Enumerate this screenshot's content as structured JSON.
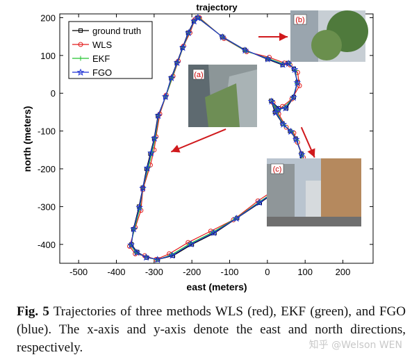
{
  "chart_data": {
    "type": "line",
    "title": "trajectory",
    "xlabel": "east (meters)",
    "ylabel": "north (meters)",
    "xlim": [
      -550,
      280
    ],
    "ylim": [
      -450,
      210
    ],
    "xticks": [
      -500,
      -400,
      -300,
      -200,
      -100,
      0,
      100,
      200
    ],
    "yticks": [
      200,
      100,
      0,
      -100,
      -200,
      -300,
      -400
    ],
    "grid": false,
    "legend_position": "top-left",
    "series": [
      {
        "name": "ground truth",
        "color": "#000000",
        "marker": "square",
        "x": [
          -185,
          -120,
          -60,
          0,
          40,
          55,
          70,
          80,
          70,
          50,
          30,
          10,
          20,
          40,
          60,
          75,
          90,
          80,
          40,
          -20,
          -80,
          -140,
          -200,
          -250,
          -290,
          -320,
          -345,
          -360,
          -355,
          -340,
          -330,
          -320,
          -310,
          -300,
          -290,
          -270,
          -255,
          -240,
          -225,
          -210,
          -195,
          -185
        ],
        "y": [
          200,
          150,
          115,
          90,
          75,
          80,
          65,
          30,
          -10,
          -40,
          -40,
          -20,
          -50,
          -80,
          -100,
          -120,
          -160,
          -210,
          -250,
          -290,
          -330,
          -370,
          -400,
          -430,
          -440,
          -435,
          -420,
          -400,
          -360,
          -300,
          -250,
          -200,
          -160,
          -120,
          -60,
          -10,
          40,
          80,
          120,
          160,
          190,
          200
        ]
      },
      {
        "name": "WLS",
        "color": "#e21b1b",
        "marker": "circle",
        "x": [
          -180,
          -115,
          -55,
          5,
          45,
          60,
          80,
          85,
          65,
          40,
          25,
          15,
          30,
          50,
          70,
          80,
          95,
          85,
          35,
          -25,
          -90,
          -150,
          -210,
          -260,
          -295,
          -325,
          -350,
          -365,
          -350,
          -335,
          -330,
          -310,
          -300,
          -295,
          -285,
          -268,
          -250,
          -236,
          -222,
          -205,
          -192,
          -180
        ],
        "y": [
          200,
          145,
          110,
          95,
          80,
          75,
          55,
          20,
          -15,
          -35,
          -50,
          -25,
          -55,
          -90,
          -105,
          -130,
          -170,
          -215,
          -245,
          -285,
          -335,
          -365,
          -395,
          -425,
          -440,
          -430,
          -425,
          -405,
          -355,
          -310,
          -255,
          -190,
          -150,
          -115,
          -55,
          -5,
          45,
          85,
          125,
          160,
          195,
          200
        ]
      },
      {
        "name": "EKF",
        "color": "#22c32e",
        "marker": "plus",
        "x": [
          -182,
          -118,
          -58,
          2,
          42,
          58,
          75,
          78,
          68,
          45,
          28,
          12,
          25,
          45,
          65,
          78,
          92,
          82,
          38,
          -22,
          -85,
          -145,
          -205,
          -255,
          -292,
          -322,
          -348,
          -362,
          -352,
          -338,
          -330,
          -315,
          -305,
          -297,
          -288,
          -269,
          -252,
          -238,
          -223,
          -208,
          -193,
          -182
        ],
        "y": [
          200,
          148,
          112,
          92,
          78,
          78,
          60,
          25,
          -12,
          -38,
          -45,
          -22,
          -52,
          -85,
          -102,
          -125,
          -165,
          -212,
          -248,
          -288,
          -332,
          -368,
          -398,
          -428,
          -441,
          -433,
          -422,
          -402,
          -358,
          -305,
          -252,
          -195,
          -155,
          -118,
          -58,
          -8,
          42,
          82,
          122,
          160,
          192,
          200
        ]
      },
      {
        "name": "FGO",
        "color": "#1f32d6",
        "marker": "star",
        "x": [
          -184,
          -119,
          -59,
          1,
          41,
          56,
          72,
          79,
          69,
          48,
          29,
          11,
          22,
          42,
          62,
          76,
          91,
          81,
          39,
          -21,
          -82,
          -142,
          -202,
          -252,
          -291,
          -321,
          -346,
          -361,
          -354,
          -339,
          -330,
          -318,
          -308,
          -299,
          -289,
          -270,
          -254,
          -239,
          -224,
          -209,
          -194,
          -184
        ],
        "y": [
          200,
          149,
          114,
          91,
          76,
          79,
          63,
          28,
          -11,
          -39,
          -42,
          -21,
          -51,
          -82,
          -101,
          -122,
          -162,
          -211,
          -249,
          -289,
          -331,
          -369,
          -399,
          -429,
          -440,
          -434,
          -421,
          -401,
          -359,
          -302,
          -251,
          -198,
          -158,
          -119,
          -59,
          -9,
          41,
          81,
          121,
          160,
          191,
          200
        ]
      }
    ],
    "annotations": [
      {
        "label": "(a)",
        "arrow_from": [
          -110,
          -95
        ],
        "arrow_to": [
          -255,
          -155
        ]
      },
      {
        "label": "(b)",
        "arrow_from": [
          60,
          140
        ],
        "arrow_to": [
          60,
          140
        ]
      },
      {
        "label": "(c)",
        "arrow_from": [
          90,
          -90
        ],
        "arrow_to": [
          125,
          -170
        ]
      }
    ]
  },
  "caption": {
    "label": "Fig. 5",
    "text": " Trajectories of three methods WLS (red), EKF (green), and FGO (blue). The x-axis and y-axis denote the east and north directions, respectively."
  },
  "watermark": "知乎 @Welson WEN"
}
